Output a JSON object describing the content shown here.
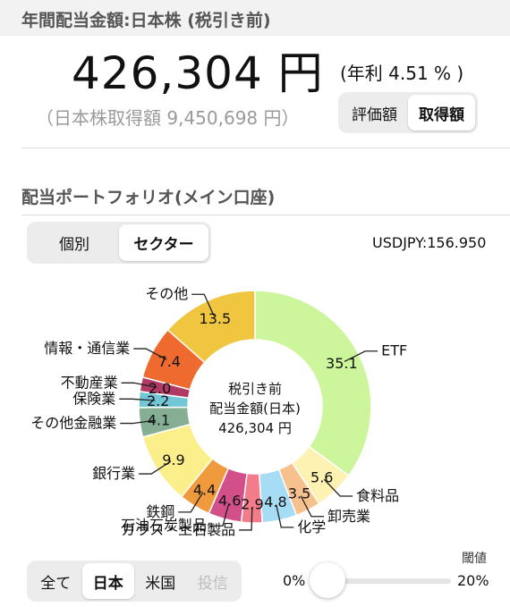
{
  "header": {
    "title": "年間配当金額:日本株 (税引き前)"
  },
  "summary": {
    "amount": "426,304 円",
    "annual_yield": "(年利 4.51 % )",
    "acquisition_line": "（日本株取得額 9,450,698 円）"
  },
  "value_toggle": {
    "options": [
      "評価額",
      "取得額"
    ],
    "selected_index": 1
  },
  "portfolio": {
    "title": "配当ポートフォリオ(メイン口座)"
  },
  "view_toggle": {
    "options": [
      "個別",
      "セクター"
    ],
    "selected_index": 1
  },
  "fx": {
    "label": "USDJPY:156.950"
  },
  "donut": {
    "center_line1": "税引き前",
    "center_line2": "配当金額(日本)",
    "center_line3": "426,304 円"
  },
  "chart_data": {
    "type": "pie",
    "subtype": "donut",
    "unit": "%",
    "slices": [
      {
        "label": "ETF",
        "value": 35.1,
        "color": "#ccf59c"
      },
      {
        "label": "食料品",
        "value": 5.6,
        "color": "#fdf2b2"
      },
      {
        "label": "卸売業",
        "value": 3.5,
        "color": "#f6c18d"
      },
      {
        "label": "化学",
        "value": 4.8,
        "color": "#a6dcf4"
      },
      {
        "label": "ガラス・土石製品",
        "value": 2.9,
        "color": "#f27c8a"
      },
      {
        "label": "石油石炭製品",
        "value": 4.6,
        "color": "#d24f8a"
      },
      {
        "label": "鉄鋼",
        "value": 4.4,
        "color": "#f09a3e"
      },
      {
        "label": "銀行業",
        "value": 9.9,
        "color": "#fbef8c"
      },
      {
        "label": "その他金融業",
        "value": 4.1,
        "color": "#85ae95"
      },
      {
        "label": "保険業",
        "value": 2.2,
        "color": "#72c7d6"
      },
      {
        "label": "不動産業",
        "value": 2.0,
        "color": "#b03a64"
      },
      {
        "label": "情報・通信業",
        "value": 7.4,
        "color": "#ee6a2e"
      },
      {
        "label": "その他",
        "value": 13.5,
        "color": "#f0c53f"
      }
    ]
  },
  "market_toggle": {
    "options": [
      "全て",
      "日本",
      "米国",
      "投信"
    ],
    "selected_index": 1,
    "disabled_index": 3
  },
  "threshold": {
    "label": "閾値",
    "min_label": "0%",
    "max_label": "20%",
    "value_percent": 1
  }
}
